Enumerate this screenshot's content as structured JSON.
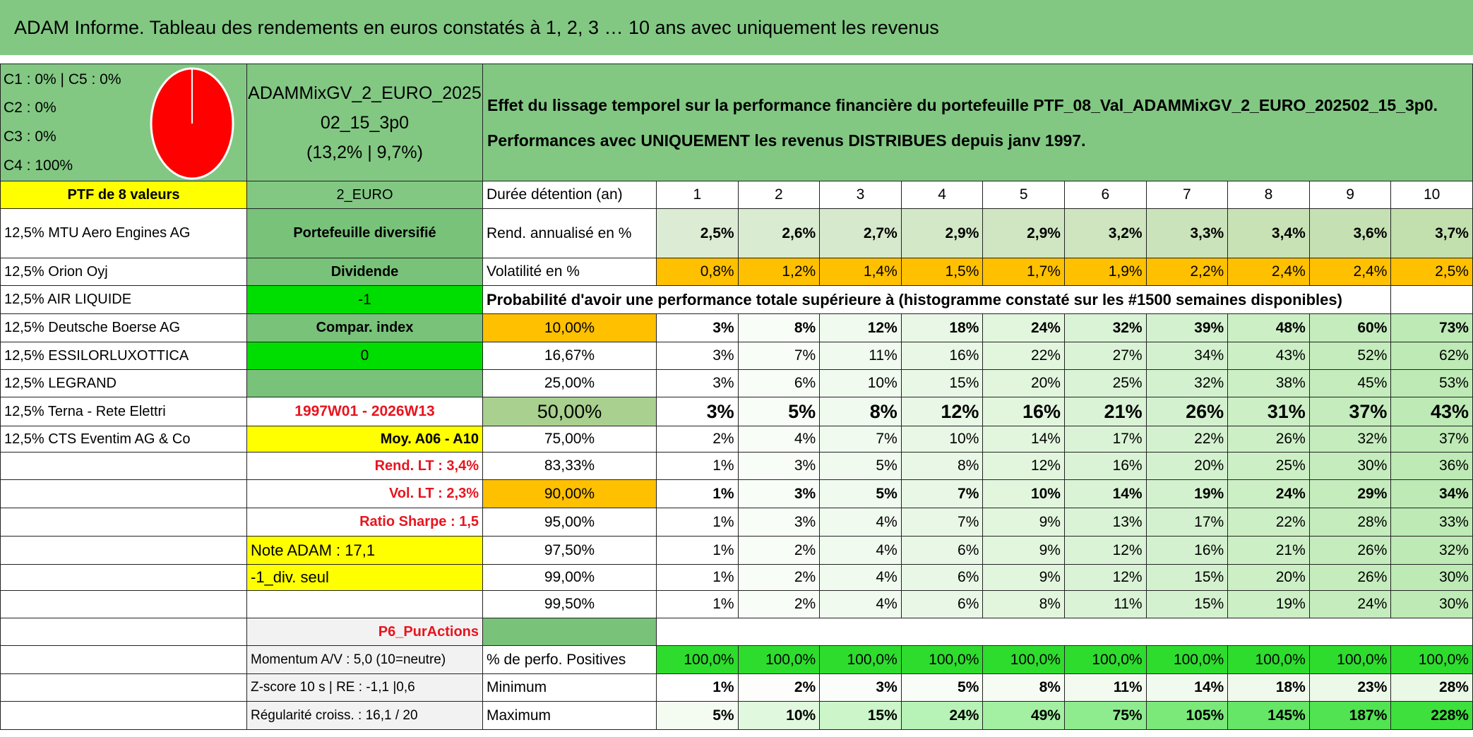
{
  "header": {
    "title": "ADAM Informe. Tableau des rendements en euros constatés à 1, 2, 3 … 10 ans avec uniquement les revenus"
  },
  "block": {
    "legend": [
      "C1 : 0% | C5 : 0%",
      "C2 : 0%",
      "C3 : 0%",
      "C4 : 100%"
    ],
    "portfolio": [
      "ADAMMixGV_2_EURO_2025",
      "02_15_3p0",
      "(13,2% | 9,7%)"
    ],
    "description": [
      "Effet du lissage temporel sur la performance financière du portefeuille PTF_08_Val_ADAMMixGV_2_EURO_202502_15_3p0.",
      "Performances avec UNIQUEMENT les revenus DISTRIBUES depuis janv 1997."
    ]
  },
  "rows": [
    [
      "PTF de 8 valeurs",
      "2_EURO",
      "Durée détention (an)",
      1,
      2,
      3,
      4,
      5,
      6,
      7,
      8,
      9,
      10
    ],
    [
      "12,5% MTU Aero Engines AG",
      "Portefeuille diversifié",
      "Rend. annualisé en %",
      "2,5%",
      "2,6%",
      "2,7%",
      "2,9%",
      "2,9%",
      "3,2%",
      "3,3%",
      "3,4%",
      "3,6%",
      "3,7%"
    ],
    [
      "12,5% Orion Oyj",
      "Dividende",
      "Volatilité en %",
      "0,8%",
      "1,2%",
      "1,4%",
      "1,5%",
      "1,7%",
      "1,9%",
      "2,2%",
      "2,4%",
      "2,4%",
      "2,5%"
    ],
    [
      "12,5% AIR LIQUIDE",
      "-1",
      "Probabilité d'avoir une performance totale supérieure à (histogramme constaté sur les #1500 semaines disponibles)",
      null
    ],
    [
      "12,5% Deutsche Boerse AG",
      "Compar. index",
      "10,00%",
      "3%",
      "8%",
      "12%",
      "18%",
      "24%",
      "32%",
      "39%",
      "48%",
      "60%",
      "73%"
    ],
    [
      "12,5% ESSILORLUXOTTICA",
      "0",
      "16,67%",
      "3%",
      "7%",
      "11%",
      "16%",
      "22%",
      "27%",
      "34%",
      "43%",
      "52%",
      "62%"
    ],
    [
      "12,5% LEGRAND",
      null,
      "25,00%",
      "3%",
      "6%",
      "10%",
      "15%",
      "20%",
      "25%",
      "32%",
      "38%",
      "45%",
      "53%"
    ],
    [
      "12,5% Terna - Rete Elettri",
      "1997W01 - 2026W13",
      "50,00%",
      "3%",
      "5%",
      "8%",
      "12%",
      "16%",
      "21%",
      "26%",
      "31%",
      "37%",
      "43%"
    ],
    [
      "12,5% CTS Eventim AG & Co",
      "Moy. A06 - A10",
      "75,00%",
      "2%",
      "4%",
      "7%",
      "10%",
      "14%",
      "17%",
      "22%",
      "26%",
      "32%",
      "37%"
    ],
    [
      null,
      "Rend. LT : 3,4%",
      "83,33%",
      "1%",
      "3%",
      "5%",
      "8%",
      "12%",
      "16%",
      "20%",
      "25%",
      "30%",
      "36%"
    ],
    [
      null,
      "Vol. LT : 2,3%",
      "90,00%",
      "1%",
      "3%",
      "5%",
      "7%",
      "10%",
      "14%",
      "19%",
      "24%",
      "29%",
      "34%"
    ],
    [
      null,
      "Ratio Sharpe : 1,5",
      "95,00%",
      "1%",
      "3%",
      "4%",
      "7%",
      "9%",
      "13%",
      "17%",
      "22%",
      "28%",
      "33%"
    ],
    [
      null,
      "Note ADAM : 17,1",
      "97,50%",
      "1%",
      "2%",
      "4%",
      "6%",
      "9%",
      "12%",
      "16%",
      "21%",
      "26%",
      "32%"
    ],
    [
      null,
      "-1_div. seul",
      "99,00%",
      "1%",
      "2%",
      "4%",
      "6%",
      "9%",
      "12%",
      "15%",
      "20%",
      "26%",
      "30%"
    ],
    [
      null,
      null,
      "99,50%",
      "1%",
      "2%",
      "4%",
      "6%",
      "8%",
      "11%",
      "15%",
      "19%",
      "24%",
      "30%"
    ],
    [
      null,
      "P6_PurActions",
      null,
      null
    ],
    [
      null,
      "Momentum A/V : 5,0 (10=neutre)",
      "% de perfo. Positives",
      "100,0%",
      "100,0%",
      "100,0%",
      "100,0%",
      "100,0%",
      "100,0%",
      "100,0%",
      "100,0%",
      "100,0%",
      "100,0%"
    ],
    [
      null,
      "Z-score 10 s | RE : -1,1 |0,6",
      "Minimum",
      "1%",
      "2%",
      "3%",
      "5%",
      "8%",
      "11%",
      "14%",
      "18%",
      "23%",
      "28%"
    ],
    [
      null,
      "Régularité croiss. : 16,1 / 20",
      "Maximum",
      "5%",
      "10%",
      "15%",
      "24%",
      "49%",
      "75%",
      "105%",
      "145%",
      "187%",
      "228%"
    ]
  ]
}
